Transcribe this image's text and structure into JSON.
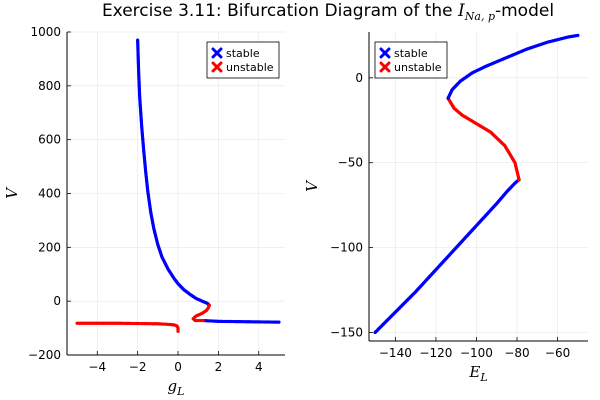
{
  "title_main": "Exercise 3.11: Bifurcation Diagram of the ",
  "title_var": "I",
  "title_sub": "Na, p",
  "title_tail": "-model",
  "colors": {
    "stable": "#0000ff",
    "unstable": "#ff0000"
  },
  "chart_data": [
    {
      "type": "scatter",
      "xlabel": "g",
      "xlabel_sub": "L",
      "ylabel": "V",
      "xlim": [
        -5.5,
        5.3
      ],
      "ylim": [
        -200,
        1000
      ],
      "xticks": [
        -4,
        -2,
        0,
        2,
        4
      ],
      "yticks": [
        -200,
        0,
        200,
        400,
        600,
        800,
        1000
      ],
      "grid": true,
      "legend": {
        "placement": "top-right",
        "entries": [
          "stable",
          "unstable"
        ]
      },
      "series": [
        {
          "name": "stable",
          "color": "#0000ff",
          "points": [
            [
              -2.0,
              970
            ],
            [
              -1.95,
              850
            ],
            [
              -1.9,
              760
            ],
            [
              -1.8,
              650
            ],
            [
              -1.7,
              560
            ],
            [
              -1.6,
              480
            ],
            [
              -1.5,
              410
            ],
            [
              -1.35,
              330
            ],
            [
              -1.2,
              270
            ],
            [
              -1.0,
              210
            ],
            [
              -0.8,
              165
            ],
            [
              -0.5,
              120
            ],
            [
              -0.2,
              85
            ],
            [
              0.0,
              65
            ],
            [
              0.3,
              42
            ],
            [
              0.6,
              25
            ],
            [
              0.9,
              10
            ],
            [
              1.2,
              0
            ],
            [
              1.45,
              -8
            ],
            [
              1.55,
              -15
            ]
          ]
        },
        {
          "name": "stable",
          "color": "#0000ff",
          "points": [
            [
              1.25,
              -72
            ],
            [
              1.5,
              -73
            ],
            [
              2.0,
              -75
            ],
            [
              3.0,
              -76
            ],
            [
              4.0,
              -77
            ],
            [
              5.0,
              -78
            ]
          ]
        },
        {
          "name": "unstable",
          "color": "#ff0000",
          "points": [
            [
              1.55,
              -15
            ],
            [
              1.5,
              -25
            ],
            [
              1.4,
              -35
            ],
            [
              1.2,
              -45
            ],
            [
              0.9,
              -55
            ],
            [
              0.75,
              -65
            ],
            [
              0.85,
              -72
            ],
            [
              1.25,
              -72
            ]
          ]
        },
        {
          "name": "unstable",
          "color": "#ff0000",
          "points": [
            [
              -5.0,
              -82
            ],
            [
              -4.0,
              -82
            ],
            [
              -3.0,
              -82
            ],
            [
              -2.0,
              -83
            ],
            [
              -1.0,
              -84
            ],
            [
              -0.5,
              -86
            ],
            [
              -0.2,
              -88
            ],
            [
              -0.05,
              -92
            ],
            [
              0.0,
              -100
            ],
            [
              0.0,
              -112
            ]
          ]
        }
      ]
    },
    {
      "type": "scatter",
      "xlabel": "E",
      "xlabel_sub": "L",
      "ylabel": "V",
      "xlim": [
        -153,
        -45
      ],
      "ylim": [
        -155,
        27
      ],
      "xticks": [
        -140,
        -120,
        -100,
        -80,
        -60
      ],
      "yticks": [
        -150,
        -100,
        -50,
        0
      ],
      "grid": true,
      "legend": {
        "placement": "top-left",
        "entries": [
          "stable",
          "unstable"
        ]
      },
      "series": [
        {
          "name": "stable",
          "color": "#0000ff",
          "points": [
            [
              -150,
              -150
            ],
            [
              -140,
              -138
            ],
            [
              -130,
              -126
            ],
            [
              -120,
              -113
            ],
            [
              -110,
              -100
            ],
            [
              -100,
              -87
            ],
            [
              -90,
              -74
            ],
            [
              -85,
              -67
            ],
            [
              -81,
              -62
            ],
            [
              -79,
              -60
            ]
          ]
        },
        {
          "name": "unstable",
          "color": "#ff0000",
          "points": [
            [
              -79,
              -60
            ],
            [
              -81,
              -50
            ],
            [
              -86,
              -40
            ],
            [
              -93,
              -32
            ],
            [
              -100,
              -27
            ],
            [
              -107,
              -22
            ],
            [
              -111,
              -18
            ],
            [
              -113,
              -14
            ],
            [
              -114,
              -12
            ]
          ]
        },
        {
          "name": "stable",
          "color": "#0000ff",
          "points": [
            [
              -114,
              -12
            ],
            [
              -112,
              -7
            ],
            [
              -108,
              -2
            ],
            [
              -102,
              3
            ],
            [
              -95,
              7
            ],
            [
              -85,
              12
            ],
            [
              -75,
              17
            ],
            [
              -65,
              21
            ],
            [
              -55,
              24
            ],
            [
              -50,
              25
            ]
          ]
        }
      ]
    }
  ]
}
